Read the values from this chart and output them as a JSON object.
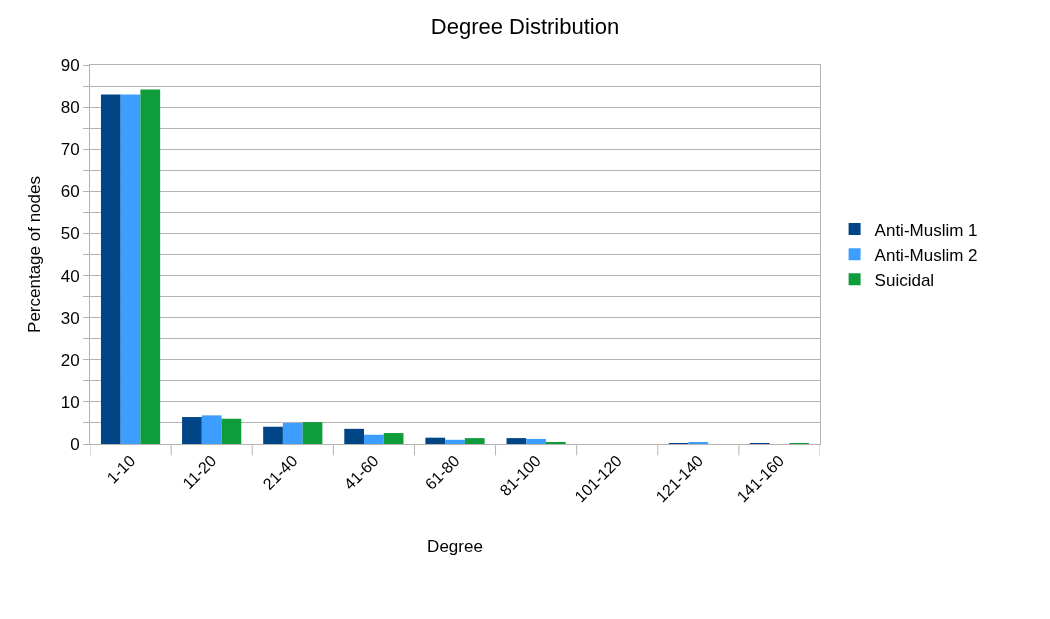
{
  "chart_data": {
    "type": "bar",
    "title": "Degree Distribution",
    "xlabel": "Degree",
    "ylabel": "Percentage of nodes",
    "categories": [
      "1-10",
      "11-20",
      "21-40",
      "41-60",
      "61-80",
      "81-100",
      "101-120",
      "121-140",
      "141-160"
    ],
    "series": [
      {
        "name": "Anti-Muslim 1",
        "color": "#004586",
        "values": [
          83,
          6.4,
          4.1,
          3.6,
          1.5,
          1.4,
          0,
          0.2,
          0.1
        ]
      },
      {
        "name": "Anti-Muslim 2",
        "color": "#3e9eff",
        "values": [
          83,
          6.8,
          5.0,
          2.2,
          1.0,
          1.2,
          0,
          0.4,
          0
        ]
      },
      {
        "name": "Suicidal",
        "color": "#0f9d3b",
        "values": [
          84.2,
          6.0,
          5.2,
          2.6,
          1.4,
          0.4,
          0,
          0,
          0.1
        ]
      }
    ],
    "ylim": [
      0,
      90
    ],
    "yticks": [
      0,
      {
        "value": 5,
        "label": null
      },
      10,
      {
        "value": 15,
        "label": null
      },
      20,
      {
        "value": 25,
        "label": null
      },
      30,
      {
        "value": 35,
        "label": null
      },
      40,
      {
        "value": 45,
        "label": null
      },
      50,
      {
        "value": 55,
        "label": null
      },
      60,
      {
        "value": 65,
        "label": null
      },
      70,
      {
        "value": 75,
        "label": null
      },
      80,
      {
        "value": 85,
        "label": null
      },
      90
    ],
    "grid": "y",
    "legend": "right"
  }
}
